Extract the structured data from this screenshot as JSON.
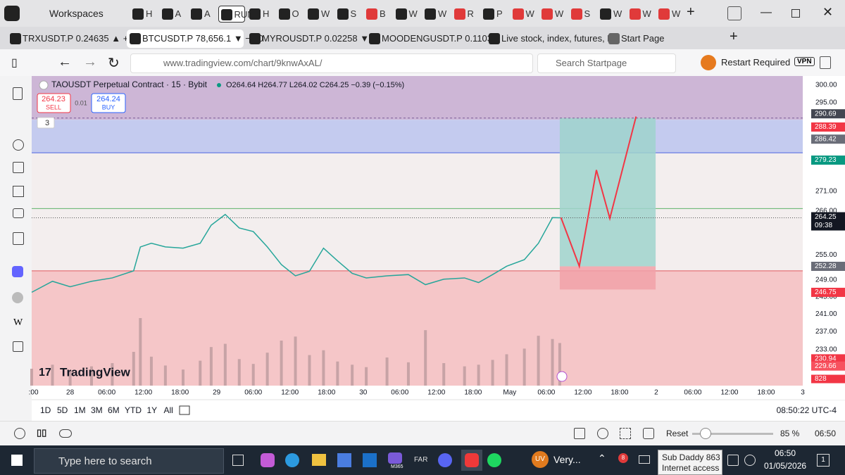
{
  "browser": {
    "workspaces": "Workspaces",
    "mini_tabs": [
      "H",
      "A",
      "A",
      "RUN",
      "H",
      "O",
      "W",
      "S",
      "B",
      "W",
      "W",
      "R",
      "P",
      "W",
      "W",
      "S",
      "W",
      "W",
      "W"
    ],
    "tabs": [
      "TRXUSDT.P 0.24635 ▲ +0.0",
      "BTCUSDT.P 78,656.1 ▼ −0.0",
      "MYROUSDT.P 0.02258 ▼ −",
      "MOODENGUSDT.P 0.11036",
      "Live stock, index, futures, Fo",
      "Start Page"
    ],
    "url": "www.tradingview.com/chart/9knwAxAL/",
    "search": "Search Startpage",
    "restart": "Restart Required",
    "vpn": "VPN",
    "sidebar_w": "W"
  },
  "chart_data": {
    "type": "line",
    "title": "TAOUSDT Perpetual Contract · 15 · Bybit",
    "ohlc": "O264.64 H264.77 L264.02 C264.25 −0.39 (−0.15%)",
    "sell_price": "264.23",
    "sell": "SELL",
    "spread": "0.01",
    "buy_price": "264.24",
    "buy": "BUY",
    "indicators": "3",
    "watermark": "TradingView",
    "log_scale": true,
    "xlim": [
      -6.3,
      120
    ],
    "ylim": [
      225.1,
      302.6
    ],
    "y2lim": [
      0,
      14000
    ],
    "x": [
      -6.3,
      -2.9,
      0,
      3.5,
      6.9,
      10.4,
      11.5,
      13.3,
      15.6,
      18.5,
      21.3,
      23.1,
      25.4,
      27.7,
      30,
      32.3,
      34.6,
      36.9,
      39.2,
      41.5,
      43.8,
      46.2,
      48.5,
      51.9,
      55.4,
      58.2,
      61.2,
      64.6,
      66.9,
      69.2,
      71.5,
      74.4,
      76.7,
      79,
      80.2
    ],
    "price": {
      "color": "#26a69a",
      "values": [
        246.1,
        248.7,
        247.4,
        248.7,
        249.5,
        251.2,
        257,
        257.9,
        257,
        256.7,
        257.9,
        262.4,
        265.1,
        261.7,
        260.8,
        257,
        252.7,
        250,
        251.1,
        256.7,
        253.6,
        250.6,
        249.5,
        250,
        250.3,
        247.9,
        249.2,
        249.5,
        248.4,
        250.3,
        252.3,
        253.9,
        257.9,
        264.3,
        264.25
      ]
    },
    "volume": {
      "axis": "y2",
      "color": "#c7a3a6",
      "values": [
        2100,
        2600,
        1900,
        2400,
        2800,
        4200,
        8400,
        3600,
        2500,
        2000,
        3100,
        4800,
        5200,
        3300,
        2700,
        4100,
        5600,
        6100,
        3800,
        4400,
        3000,
        2600,
        2300,
        3500,
        2900,
        6900,
        2800,
        2400,
        2600,
        3200,
        3900,
        4600,
        6200,
        5800,
        5300
      ],
      "last": 828,
      "last_color": "#f23645"
    },
    "zones": [
      {
        "from": 290.2,
        "to": 302.6,
        "color": "#cdb6d6"
      },
      {
        "from": 281.2,
        "to": 290.2,
        "color": "#c4cbef"
      },
      {
        "from": 251.2,
        "to": 281.2,
        "color": "#f3eeee"
      },
      {
        "from": 225.1,
        "to": 251.2,
        "color": "#f5c6c8"
      }
    ],
    "hlines": [
      {
        "value": 281.2,
        "color": "#4b63e0"
      },
      {
        "value": 266.6,
        "color": "#5fb36a"
      },
      {
        "value": 251.2,
        "color": "#e0575f"
      }
    ],
    "position": {
      "x_from": 80.2,
      "x_to": 95.9,
      "entry": 252.28,
      "target": 290.69,
      "stop": 246.75,
      "profit_color": "#9fd3cd",
      "loss_color": "#f1a1a8"
    },
    "projection": {
      "color": "#f23645",
      "x": [
        80.4,
        83.4,
        86.2,
        88.4,
        92.7
      ],
      "y": [
        264.3,
        252.3,
        276.6,
        264.1,
        291.1
      ]
    },
    "last_price": {
      "value": 264.25,
      "countdown": "09:38"
    },
    "price_labels": [
      {
        "value": 288.39,
        "color": "#f23645"
      },
      {
        "value": 286.42,
        "color": "#6a6d78"
      },
      {
        "value": 279.23,
        "color": "#089981"
      },
      {
        "value": 230.94,
        "color": "#f23645"
      },
      {
        "value": 229.66,
        "color": "#f7525f"
      }
    ],
    "yticks": [
      {
        "value": 300,
        "label": "300.00"
      },
      {
        "value": 295,
        "label": "295.00"
      },
      {
        "value": 271,
        "label": "271.00"
      },
      {
        "value": 266,
        "label": "266.00"
      },
      {
        "value": 255,
        "label": "255.00"
      },
      {
        "value": 249,
        "label": "249.00"
      },
      {
        "value": 245,
        "label": "245.00"
      },
      {
        "value": 241,
        "label": "241.00"
      },
      {
        "value": 237,
        "label": "237.00"
      },
      {
        "value": 233,
        "label": "233.00"
      }
    ],
    "xticks": [
      {
        "value": -6,
        "label": ":00"
      },
      {
        "value": 0,
        "label": "28"
      },
      {
        "value": 6,
        "label": "06:00"
      },
      {
        "value": 12,
        "label": "12:00"
      },
      {
        "value": 18,
        "label": "18:00"
      },
      {
        "value": 24,
        "label": "29"
      },
      {
        "value": 30,
        "label": "06:00"
      },
      {
        "value": 36,
        "label": "12:00"
      },
      {
        "value": 42,
        "label": "18:00"
      },
      {
        "value": 48,
        "label": "30"
      },
      {
        "value": 54,
        "label": "06:00"
      },
      {
        "value": 60,
        "label": "12:00"
      },
      {
        "value": 66,
        "label": "18:00"
      },
      {
        "value": 72,
        "label": "May"
      },
      {
        "value": 78,
        "label": "06:00"
      },
      {
        "value": 84,
        "label": "12:00"
      },
      {
        "value": 90,
        "label": "18:00"
      },
      {
        "value": 96,
        "label": "2"
      },
      {
        "value": 102,
        "label": "06:00"
      },
      {
        "value": 108,
        "label": "12:00"
      },
      {
        "value": 114,
        "label": "18:00"
      },
      {
        "value": 120,
        "label": "3"
      }
    ],
    "ranges": [
      "1D",
      "5D",
      "1M",
      "3M",
      "6M",
      "YTD",
      "1Y",
      "All"
    ],
    "clock": "08:50:22 UTC-4"
  },
  "status": {
    "reset": "Reset",
    "zoom": "85 %",
    "time": "06:50"
  },
  "taskbar": {
    "search": "Type here to search",
    "far": "FAR",
    "m365": "M365",
    "uv": "UV",
    "very": "Very...",
    "badge": "8",
    "tooltip_title": "Sub Daddy 863",
    "tooltip_text": "Internet access",
    "time": "06:50",
    "date": "01/05/2026",
    "notify": "1"
  }
}
